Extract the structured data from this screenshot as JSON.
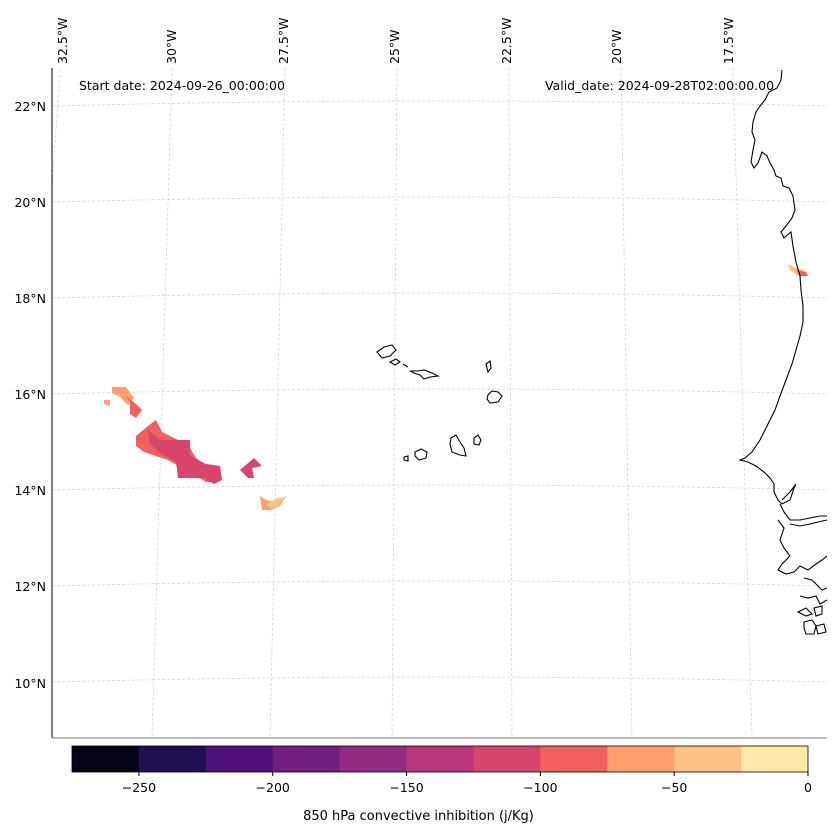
{
  "map": {
    "start_date": "Start date: 2024-09-26_00:00:00",
    "valid_date": "Valid_date: 2024-09-28T02:00:00.00",
    "lon_labels": [
      "32.5°W",
      "30°W",
      "27.5°W",
      "25°W",
      "22.5°W",
      "20°W",
      "17.5°W"
    ],
    "lat_labels": [
      "22°N",
      "20°N",
      "18°N",
      "16°N",
      "14°N",
      "12°N",
      "10°N"
    ],
    "field": "850 hPa convective inhibition",
    "region": "Cape Verde Islands and West African coast"
  },
  "colorbar": {
    "label": "850 hPa convective inhibition (j/Kg)",
    "min": -275,
    "max": 0,
    "ticks": [
      "−250",
      "−200",
      "−150",
      "−100",
      "−50",
      "0"
    ],
    "colors": [
      "#050416",
      "#221150",
      "#4f117b",
      "#721f81",
      "#932b80",
      "#b73779",
      "#d8456c",
      "#f1605d",
      "#fe9f6d",
      "#fec287",
      "#fde8a7"
    ]
  },
  "colors": {
    "coast": "#000000",
    "grid": "#d0d0d0",
    "cin_band_125_100": "#d8456c",
    "cin_band_100_75": "#f1605d",
    "cin_band_75_50": "#fe8f63",
    "cin_band_50_25": "#fec287"
  }
}
